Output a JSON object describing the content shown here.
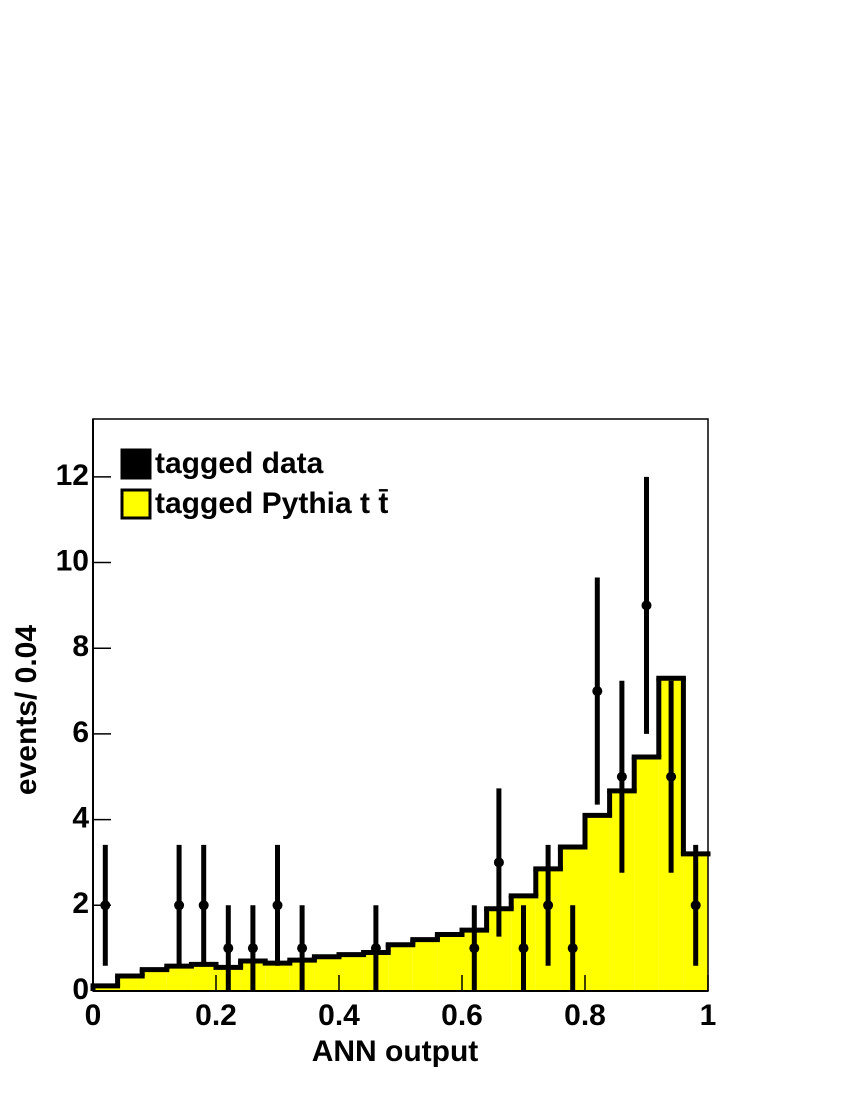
{
  "chart_data": {
    "type": "histogram",
    "x_label": "ANN output",
    "y_label": "events/ 0.04",
    "xlim": [
      0,
      1
    ],
    "ylim": [
      0,
      13.35
    ],
    "xticks": [
      0,
      0.2,
      0.4,
      0.6,
      0.8,
      1
    ],
    "yticks": [
      0,
      2,
      4,
      6,
      8,
      10,
      12
    ],
    "legend": "top-left",
    "bins": [
      0,
      0.04,
      0.08,
      0.12,
      0.16,
      0.2,
      0.24,
      0.28,
      0.32,
      0.36,
      0.4,
      0.44,
      0.48,
      0.52,
      0.56,
      0.6,
      0.64,
      0.68,
      0.72,
      0.76,
      0.8,
      0.84,
      0.88,
      0.92,
      0.96,
      1
    ],
    "series": [
      {
        "name": "tagged Pythia t t̄",
        "color": "#ffff00",
        "values": [
          0.12,
          0.35,
          0.5,
          0.58,
          0.62,
          0.55,
          0.7,
          0.65,
          0.72,
          0.8,
          0.85,
          0.9,
          1.08,
          1.2,
          1.32,
          1.42,
          1.92,
          2.22,
          2.85,
          3.36,
          4.1,
          4.67,
          5.46,
          7.3,
          3.2
        ]
      },
      {
        "name": "tagged data",
        "color": "#000000",
        "x": [
          0.02,
          0.14,
          0.18,
          0.22,
          0.26,
          0.3,
          0.34,
          0.46,
          0.62,
          0.66,
          0.7,
          0.74,
          0.78,
          0.82,
          0.86,
          0.9,
          0.94,
          0.98
        ],
        "values": [
          2,
          2,
          2,
          1,
          1,
          2,
          1,
          1,
          1,
          3,
          1,
          2,
          1,
          7,
          5,
          9,
          5,
          2
        ],
        "errors": [
          1.41,
          1.41,
          1.41,
          1,
          1,
          1.41,
          1,
          1,
          1,
          1.73,
          1,
          1.41,
          1,
          2.65,
          2.24,
          3,
          2.24,
          1.41
        ]
      }
    ]
  }
}
